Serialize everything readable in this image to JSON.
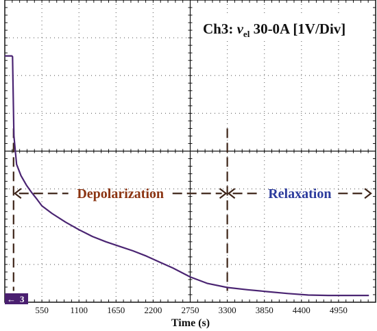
{
  "colors": {
    "background": "#ffffff",
    "frame": "#111111",
    "grid": "#6f6f6f",
    "trace": "#4a2472",
    "channel_marker": "#4a1f70",
    "depolarization": "#8b3412",
    "relaxation": "#2b3a9c",
    "arrow": "#3d2418",
    "text": "#111111"
  },
  "channel_label": {
    "prefix": "Ch3: ",
    "variable": "v",
    "subscript": "el",
    "suffix": " 30-0A [1V/Div]"
  },
  "marker": {
    "arrow_icon": "left-arrow-icon",
    "arrow_glyph": "←",
    "number": "3"
  },
  "chart_data": {
    "type": "line",
    "xlabel": "Time (s)",
    "ylabel": "",
    "xlim": [
      0,
      5500
    ],
    "ylim_divisions": [
      0,
      8
    ],
    "y_unit_per_division": "1V",
    "grid": true,
    "x_ticks": [
      "550",
      "1100",
      "1650",
      "2200",
      "2750",
      "3300",
      "3850",
      "4400",
      "4950"
    ],
    "series": [
      {
        "points": [
          [
            0,
            6.52
          ],
          [
            70,
            6.52
          ],
          [
            105,
            6.52
          ],
          [
            115,
            6.5
          ],
          [
            135,
            4.4
          ],
          [
            175,
            3.65
          ],
          [
            240,
            3.35
          ],
          [
            320,
            3.1
          ],
          [
            400,
            2.9
          ],
          [
            480,
            2.72
          ],
          [
            550,
            2.55
          ],
          [
            700,
            2.35
          ],
          [
            900,
            2.12
          ],
          [
            1100,
            1.92
          ],
          [
            1300,
            1.74
          ],
          [
            1500,
            1.6
          ],
          [
            1700,
            1.48
          ],
          [
            1900,
            1.36
          ],
          [
            2100,
            1.22
          ],
          [
            2300,
            1.06
          ],
          [
            2500,
            0.9
          ],
          [
            2750,
            0.67
          ],
          [
            3000,
            0.5
          ],
          [
            3300,
            0.39
          ],
          [
            3600,
            0.33
          ],
          [
            3900,
            0.28
          ],
          [
            4200,
            0.23
          ],
          [
            4500,
            0.19
          ],
          [
            4800,
            0.18
          ],
          [
            5100,
            0.18
          ],
          [
            5400,
            0.18
          ]
        ]
      }
    ],
    "phase_markers_x": [
      130,
      3300
    ],
    "annotations": [
      {
        "label": "Depolarization",
        "from_x": 130,
        "to_x": 3300,
        "y": 2.88
      },
      {
        "label": "Relaxation",
        "from_x": 3300,
        "to_x": 5450,
        "y": 2.88
      }
    ]
  }
}
